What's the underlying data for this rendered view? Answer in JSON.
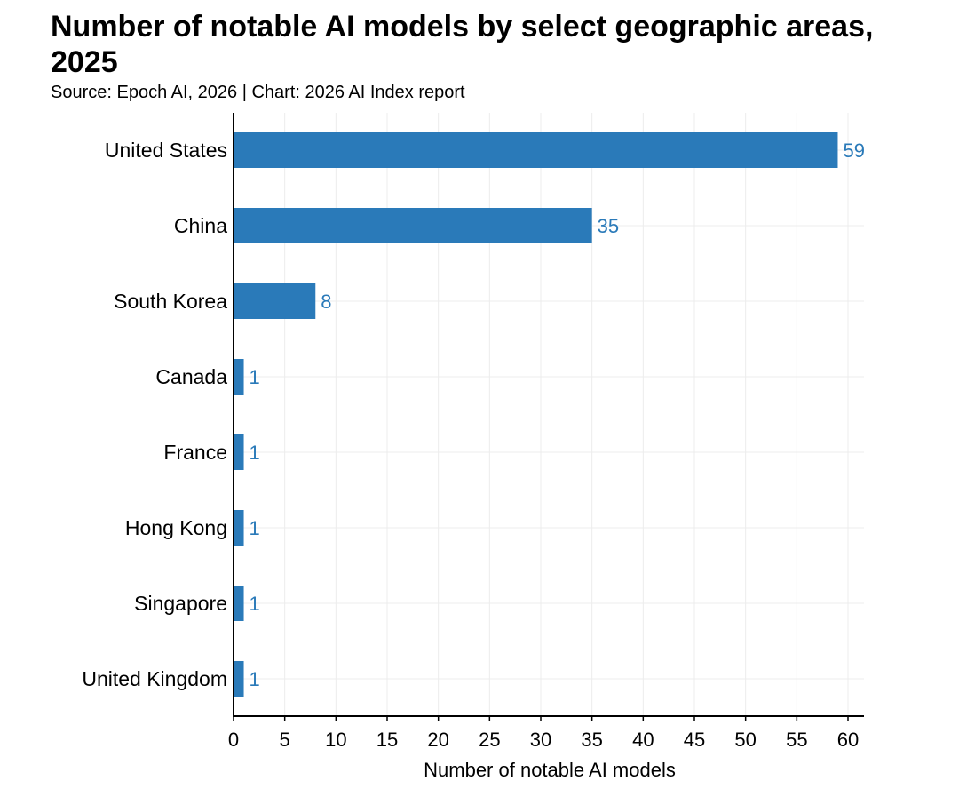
{
  "title": "Number of notable AI models by select geographic areas, 2025",
  "subtitle": "Source: Epoch AI, 2026 | Chart: 2026 AI Index report",
  "chart_data": {
    "type": "bar",
    "orientation": "horizontal",
    "categories": [
      "United States",
      "China",
      "South Korea",
      "Canada",
      "France",
      "Hong Kong",
      "Singapore",
      "United Kingdom"
    ],
    "values": [
      59,
      35,
      8,
      1,
      1,
      1,
      1,
      1
    ],
    "xlabel": "Number of notable AI models",
    "ylabel": "",
    "xlim": [
      0,
      62
    ],
    "xticks": [
      0,
      5,
      10,
      15,
      20,
      25,
      30,
      35,
      40,
      45,
      50,
      55,
      60
    ],
    "grid": true,
    "data_labels": true,
    "bar_color": "#2a7ab9",
    "label_color": "#2a7ab9"
  }
}
